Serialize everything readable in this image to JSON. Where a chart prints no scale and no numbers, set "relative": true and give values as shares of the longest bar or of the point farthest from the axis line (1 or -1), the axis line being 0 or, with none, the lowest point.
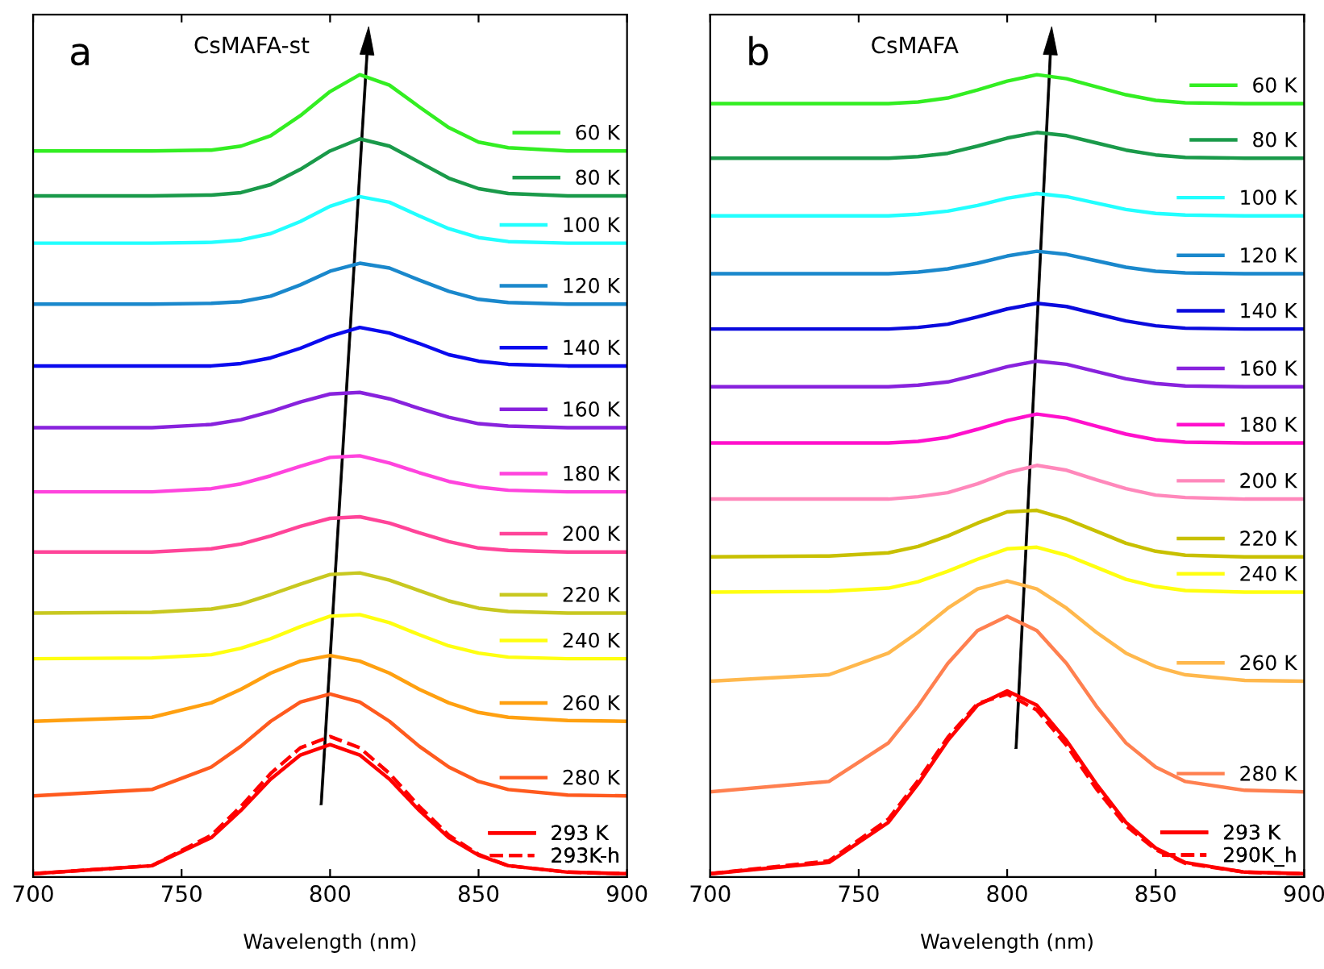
{
  "chart_data": [
    {
      "type": "line",
      "title": "CsMAFA-st",
      "annotations": [
        "a"
      ],
      "xlabel": "Wavelength (nm)",
      "relative": true,
      "legend": "right",
      "line_style": "solid",
      "xlim": [
        700,
        900
      ],
      "xticks": [
        700,
        750,
        800,
        850,
        900
      ],
      "x": [
        700,
        740,
        760,
        770,
        780,
        790,
        800,
        810,
        820,
        830,
        840,
        850,
        860,
        880,
        900
      ],
      "series": [
        {
          "name": "60 K",
          "color": "#33ee22",
          "values": [
            0.905,
            0.905,
            0.906,
            0.911,
            0.924,
            0.949,
            0.979,
            1.0,
            0.987,
            0.96,
            0.934,
            0.916,
            0.909,
            0.905,
            0.905
          ]
        },
        {
          "name": "80 K",
          "color": "#1a9a4a",
          "values": [
            0.849,
            0.849,
            0.85,
            0.853,
            0.863,
            0.882,
            0.905,
            0.92,
            0.911,
            0.891,
            0.871,
            0.858,
            0.852,
            0.849,
            0.849
          ]
        },
        {
          "name": "100 K",
          "color": "#22ffff",
          "values": [
            0.79,
            0.79,
            0.791,
            0.794,
            0.802,
            0.817,
            0.836,
            0.848,
            0.841,
            0.824,
            0.808,
            0.797,
            0.792,
            0.79,
            0.79
          ]
        },
        {
          "name": "120 K",
          "color": "#1a88cc",
          "values": [
            0.714,
            0.714,
            0.715,
            0.717,
            0.724,
            0.738,
            0.755,
            0.765,
            0.759,
            0.744,
            0.73,
            0.72,
            0.716,
            0.714,
            0.714
          ]
        },
        {
          "name": "140 K",
          "color": "#0a0aee",
          "values": [
            0.637,
            0.637,
            0.637,
            0.64,
            0.647,
            0.659,
            0.674,
            0.685,
            0.678,
            0.665,
            0.651,
            0.643,
            0.639,
            0.637,
            0.637
          ]
        },
        {
          "name": "160 K",
          "color": "#8822dd",
          "values": [
            0.56,
            0.56,
            0.564,
            0.57,
            0.58,
            0.592,
            0.602,
            0.604,
            0.596,
            0.584,
            0.573,
            0.565,
            0.562,
            0.56,
            0.56
          ]
        },
        {
          "name": "180 K",
          "color": "#ff44dd",
          "values": [
            0.48,
            0.48,
            0.484,
            0.49,
            0.5,
            0.512,
            0.523,
            0.525,
            0.516,
            0.504,
            0.493,
            0.486,
            0.482,
            0.48,
            0.48
          ]
        },
        {
          "name": "200 K",
          "color": "#ff4499",
          "values": [
            0.405,
            0.405,
            0.409,
            0.415,
            0.425,
            0.437,
            0.447,
            0.449,
            0.441,
            0.429,
            0.418,
            0.41,
            0.407,
            0.405,
            0.405
          ]
        },
        {
          "name": "220 K",
          "color": "#c8c820",
          "values": [
            0.329,
            0.33,
            0.334,
            0.34,
            0.352,
            0.365,
            0.377,
            0.379,
            0.37,
            0.357,
            0.344,
            0.335,
            0.331,
            0.329,
            0.329
          ]
        },
        {
          "name": "240 K",
          "color": "#ffff10",
          "values": [
            0.272,
            0.273,
            0.277,
            0.285,
            0.297,
            0.312,
            0.325,
            0.327,
            0.317,
            0.302,
            0.288,
            0.279,
            0.274,
            0.272,
            0.272
          ]
        },
        {
          "name": "260 K",
          "color": "#ffa010",
          "values": [
            0.194,
            0.199,
            0.217,
            0.234,
            0.254,
            0.269,
            0.276,
            0.269,
            0.254,
            0.234,
            0.217,
            0.205,
            0.199,
            0.195,
            0.194
          ]
        },
        {
          "name": "280 K",
          "color": "#ff5a1e",
          "values": [
            0.101,
            0.109,
            0.137,
            0.163,
            0.194,
            0.218,
            0.228,
            0.218,
            0.194,
            0.163,
            0.137,
            0.119,
            0.109,
            0.102,
            0.101
          ]
        },
        {
          "name": "293 K",
          "color": "#ff0000",
          "values": [
            0.004,
            0.014,
            0.049,
            0.083,
            0.122,
            0.152,
            0.165,
            0.152,
            0.122,
            0.083,
            0.049,
            0.027,
            0.014,
            0.006,
            0.004
          ]
        },
        {
          "name": "293K-h",
          "color": "#ff0000",
          "line_style": "dashed",
          "values": [
            0.004,
            0.014,
            0.052,
            0.088,
            0.129,
            0.161,
            0.175,
            0.161,
            0.129,
            0.088,
            0.052,
            0.028,
            0.014,
            0.006,
            0.004
          ]
        }
      ]
    },
    {
      "type": "line",
      "title": "CsMAFA",
      "annotations": [
        "b"
      ],
      "xlabel": "Wavelength (nm)",
      "relative": true,
      "legend": "right",
      "line_style": "solid",
      "xlim": [
        700,
        900
      ],
      "xticks": [
        700,
        750,
        800,
        850,
        900
      ],
      "x": [
        700,
        740,
        760,
        770,
        780,
        790,
        800,
        810,
        820,
        830,
        840,
        850,
        860,
        880,
        900
      ],
      "series": [
        {
          "name": "60 K",
          "color": "#33ee22",
          "values": [
            0.964,
            0.964,
            0.964,
            0.966,
            0.971,
            0.981,
            0.992,
            1.0,
            0.995,
            0.985,
            0.975,
            0.968,
            0.965,
            0.964,
            0.964
          ]
        },
        {
          "name": "80 K",
          "color": "#1a9a4a",
          "values": [
            0.896,
            0.896,
            0.896,
            0.898,
            0.902,
            0.911,
            0.921,
            0.928,
            0.924,
            0.915,
            0.906,
            0.9,
            0.897,
            0.896,
            0.896
          ]
        },
        {
          "name": "100 K",
          "color": "#22ffff",
          "values": [
            0.824,
            0.824,
            0.824,
            0.826,
            0.83,
            0.837,
            0.846,
            0.852,
            0.848,
            0.84,
            0.832,
            0.827,
            0.825,
            0.824,
            0.824
          ]
        },
        {
          "name": "120 K",
          "color": "#1a88cc",
          "values": [
            0.752,
            0.752,
            0.752,
            0.754,
            0.758,
            0.765,
            0.774,
            0.78,
            0.776,
            0.768,
            0.76,
            0.755,
            0.753,
            0.752,
            0.752
          ]
        },
        {
          "name": "140 K",
          "color": "#0a0add",
          "values": [
            0.683,
            0.683,
            0.683,
            0.685,
            0.689,
            0.698,
            0.708,
            0.715,
            0.711,
            0.702,
            0.693,
            0.687,
            0.684,
            0.683,
            0.683
          ]
        },
        {
          "name": "160 K",
          "color": "#8822dd",
          "values": [
            0.611,
            0.611,
            0.611,
            0.613,
            0.617,
            0.626,
            0.636,
            0.643,
            0.639,
            0.63,
            0.621,
            0.615,
            0.612,
            0.611,
            0.611
          ]
        },
        {
          "name": "180 K",
          "color": "#ff10cc",
          "values": [
            0.541,
            0.541,
            0.541,
            0.543,
            0.548,
            0.558,
            0.569,
            0.577,
            0.572,
            0.562,
            0.552,
            0.545,
            0.542,
            0.541,
            0.541
          ]
        },
        {
          "name": "200 K",
          "color": "#ff88bb",
          "values": [
            0.471,
            0.471,
            0.471,
            0.474,
            0.479,
            0.49,
            0.504,
            0.513,
            0.507,
            0.495,
            0.484,
            0.476,
            0.473,
            0.471,
            0.471
          ]
        },
        {
          "name": "220 K",
          "color": "#c8c000",
          "values": [
            0.399,
            0.4,
            0.404,
            0.412,
            0.425,
            0.441,
            0.455,
            0.457,
            0.446,
            0.431,
            0.416,
            0.406,
            0.401,
            0.399,
            0.399
          ]
        },
        {
          "name": "240 K",
          "color": "#ffff10",
          "values": [
            0.355,
            0.356,
            0.36,
            0.368,
            0.381,
            0.396,
            0.409,
            0.411,
            0.401,
            0.386,
            0.371,
            0.362,
            0.357,
            0.355,
            0.355
          ]
        },
        {
          "name": "260 K",
          "color": "#ffb84d",
          "values": [
            0.244,
            0.252,
            0.279,
            0.305,
            0.335,
            0.359,
            0.369,
            0.359,
            0.335,
            0.305,
            0.279,
            0.262,
            0.252,
            0.245,
            0.244
          ]
        },
        {
          "name": "280 K",
          "color": "#ff8050",
          "values": [
            0.106,
            0.119,
            0.167,
            0.213,
            0.266,
            0.307,
            0.325,
            0.307,
            0.266,
            0.213,
            0.167,
            0.137,
            0.119,
            0.108,
            0.106
          ]
        },
        {
          "name": "293 K",
          "color": "#ff0000",
          "values": [
            0.004,
            0.018,
            0.068,
            0.116,
            0.17,
            0.214,
            0.232,
            0.214,
            0.17,
            0.116,
            0.068,
            0.036,
            0.018,
            0.006,
            0.004
          ]
        },
        {
          "name": "290K_h",
          "color": "#ff0000",
          "line_style": "dashed",
          "values": [
            0.004,
            0.02,
            0.072,
            0.12,
            0.174,
            0.216,
            0.228,
            0.208,
            0.164,
            0.11,
            0.064,
            0.034,
            0.017,
            0.006,
            0.004
          ]
        }
      ]
    }
  ]
}
